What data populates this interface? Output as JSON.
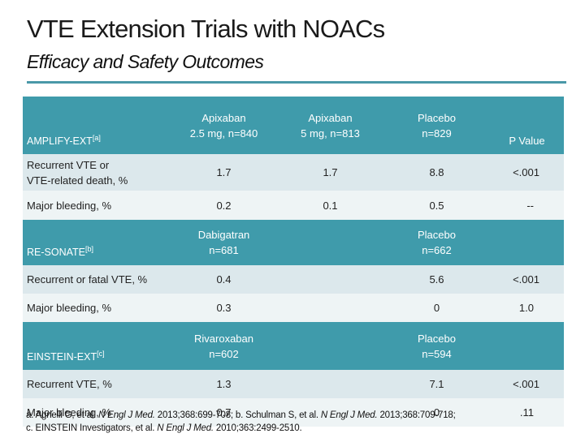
{
  "title": "VTE Extension Trials with NOACs",
  "subtitle": "Efficacy and Safety Outcomes",
  "amplify": {
    "label": "AMPLIFY-EXT",
    "ref": "[a]",
    "col1": [
      "Apixaban",
      "2.5 mg, n=840"
    ],
    "col2": [
      "Apixaban",
      "5 mg, n=813"
    ],
    "col3": [
      "Placebo",
      "n=829"
    ],
    "pvalue_label": "P Value",
    "rows": [
      {
        "label": [
          "Recurrent VTE or",
          "VTE-related death, %"
        ],
        "v1": "1.7",
        "v2": "1.7",
        "v3": "8.8",
        "p": "<.001"
      },
      {
        "label": [
          "Major bleeding, %"
        ],
        "v1": "0.2",
        "v2": "0.1",
        "v3": "0.5",
        "p": "--"
      }
    ]
  },
  "resonate": {
    "label": "RE-SONATE",
    "ref": "[b]",
    "col1": [
      "Dabigatran",
      "n=681"
    ],
    "col3": [
      "Placebo",
      "n=662"
    ],
    "rows": [
      {
        "label": [
          "Recurrent or fatal VTE, %"
        ],
        "v1": "0.4",
        "v3": "5.6",
        "p": "<.001"
      },
      {
        "label": [
          "Major bleeding, %"
        ],
        "v1": "0.3",
        "v3": "0",
        "p": "1.0"
      }
    ]
  },
  "einstein": {
    "label": "EINSTEIN-EXT",
    "ref": "[c]",
    "col1": [
      "Rivaroxaban",
      "n=602"
    ],
    "col3": [
      "Placebo",
      "n=594"
    ],
    "rows": [
      {
        "label": [
          "Recurrent VTE, %"
        ],
        "v1": "1.3",
        "v3": "7.1",
        "p": "<.001"
      },
      {
        "label": [
          "Major bleeding, %"
        ],
        "v1": "0.7",
        "v3": "0",
        "p": ".11"
      }
    ]
  },
  "footnote": {
    "a_pre": "a. Agnelli G, et al. ",
    "a_journal": "N Engl J Med.",
    "a_post": " 2013;368:699-708; b. Schulman S, et al. ",
    "b_journal": "N Engl J Med.",
    "b_post": " 2013;368:709-718;",
    "c_pre": "c. EINSTEIN Investigators, et al. ",
    "c_journal": "N Engl J Med.",
    "c_post": " 2010;363:2499-2510."
  }
}
